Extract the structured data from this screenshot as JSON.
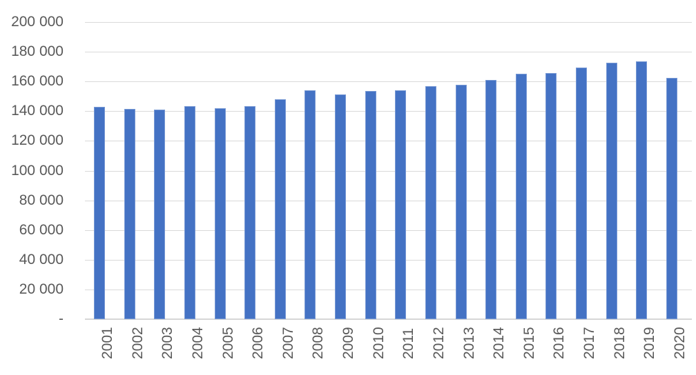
{
  "chart_data": {
    "type": "bar",
    "title": "",
    "xlabel": "",
    "ylabel": "",
    "categories": [
      "2001",
      "2002",
      "2003",
      "2004",
      "2005",
      "2006",
      "2007",
      "2008",
      "2009",
      "2010",
      "2011",
      "2012",
      "2013",
      "2014",
      "2015",
      "2016",
      "2017",
      "2018",
      "2019",
      "2020"
    ],
    "values": [
      143000,
      141500,
      141000,
      143500,
      142000,
      143500,
      148000,
      154000,
      151500,
      153500,
      154000,
      157000,
      158000,
      161000,
      165000,
      165500,
      169500,
      172500,
      173500,
      162500
    ],
    "y_axis": {
      "min": 0,
      "max": 200000,
      "tick_step": 20000,
      "tick_labels_bottom_to_top": [
        "-",
        "20 000",
        "40 000",
        "60 000",
        "80 000",
        "100 000",
        "120 000",
        "140 000",
        "160 000",
        "180 000",
        "200 000"
      ]
    },
    "legend": "none",
    "grid": "horizontal",
    "colors": {
      "bar_fill": "#4472c4",
      "gridline": "#d9d9d9",
      "axis_line": "#d6d6d6",
      "label_text": "#595959",
      "background": "#ffffff"
    }
  }
}
